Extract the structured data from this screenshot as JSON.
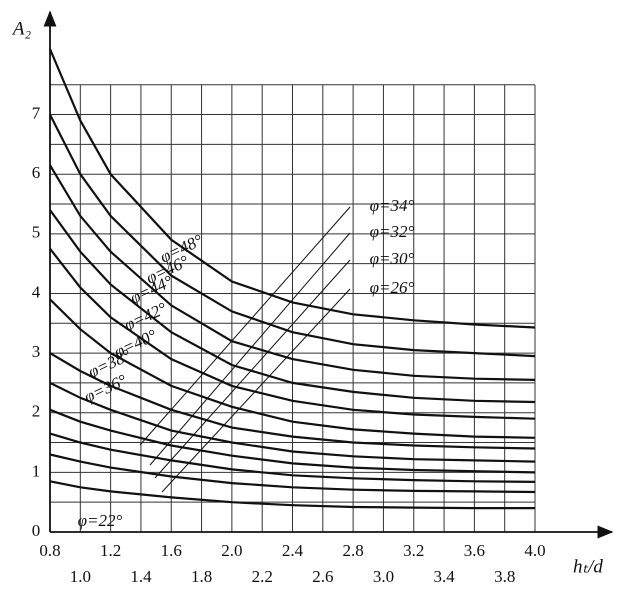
{
  "chart_data": {
    "type": "line",
    "y_label": "A₂",
    "x_label": "hₜ/d",
    "xlim": [
      0.8,
      4.0
    ],
    "ylim": [
      0,
      8.2
    ],
    "xticks": [
      0.8,
      {
        "value": 1.0,
        "label": "1.0"
      },
      1.2,
      1.4,
      1.6,
      1.8,
      {
        "value": 2.0,
        "label": "2.0"
      },
      2.2,
      2.4,
      2.6,
      2.8,
      {
        "value": 3.0,
        "label": "3.0"
      },
      3.2,
      3.4,
      3.6,
      3.8,
      {
        "value": 4.0,
        "label": "4.0"
      }
    ],
    "yticks": [
      0,
      1,
      2,
      3,
      4,
      5,
      6,
      7
    ],
    "minor_yticks": [
      0.5,
      1.5,
      2.5,
      3.5,
      4.5,
      5.5,
      6.5,
      7.5
    ],
    "grid": true,
    "x": [
      0.8,
      1.0,
      1.2,
      1.6,
      2.0,
      2.4,
      2.8,
      3.2,
      3.6,
      4.0
    ],
    "series": [
      {
        "name": "φ=48°",
        "color": "#111111",
        "values": [
          8.1,
          6.9,
          6.0,
          4.9,
          4.2,
          3.85,
          3.65,
          3.55,
          3.48,
          3.43
        ]
      },
      {
        "name": "φ=46°",
        "color": "#111111",
        "values": [
          7.0,
          6.0,
          5.3,
          4.3,
          3.7,
          3.35,
          3.15,
          3.05,
          3.0,
          2.95
        ]
      },
      {
        "name": "φ=44°",
        "color": "#111111",
        "values": [
          6.15,
          5.3,
          4.7,
          3.8,
          3.2,
          2.9,
          2.72,
          2.62,
          2.57,
          2.55
        ]
      },
      {
        "name": "φ=42°",
        "color": "#111111",
        "values": [
          5.4,
          4.7,
          4.15,
          3.35,
          2.8,
          2.5,
          2.35,
          2.25,
          2.2,
          2.18
        ]
      },
      {
        "name": "φ=40°",
        "color": "#111111",
        "values": [
          4.75,
          4.1,
          3.6,
          2.9,
          2.45,
          2.2,
          2.05,
          1.97,
          1.93,
          1.9
        ]
      },
      {
        "name": "φ=38°",
        "color": "#111111",
        "values": [
          3.9,
          3.4,
          3.0,
          2.45,
          2.1,
          1.85,
          1.72,
          1.65,
          1.6,
          1.58
        ]
      },
      {
        "name": "φ=36°",
        "color": "#111111",
        "values": [
          3.0,
          2.7,
          2.45,
          2.05,
          1.75,
          1.6,
          1.5,
          1.45,
          1.42,
          1.4
        ]
      },
      {
        "name": "φ=34°",
        "color": "#111111",
        "values": [
          2.5,
          2.25,
          2.05,
          1.7,
          1.5,
          1.35,
          1.27,
          1.22,
          1.2,
          1.18
        ]
      },
      {
        "name": "φ=32°",
        "color": "#111111",
        "values": [
          2.05,
          1.85,
          1.7,
          1.45,
          1.28,
          1.15,
          1.08,
          1.04,
          1.02,
          1.0
        ]
      },
      {
        "name": "φ=30°",
        "color": "#111111",
        "values": [
          1.65,
          1.5,
          1.38,
          1.2,
          1.05,
          0.95,
          0.9,
          0.87,
          0.85,
          0.84
        ]
      },
      {
        "name": "φ=26°",
        "color": "#111111",
        "values": [
          1.3,
          1.18,
          1.08,
          0.93,
          0.82,
          0.75,
          0.71,
          0.69,
          0.68,
          0.67
        ]
      },
      {
        "name": "φ=22°",
        "color": "#111111",
        "values": [
          0.85,
          0.75,
          0.68,
          0.58,
          0.5,
          0.45,
          0.42,
          0.41,
          0.4,
          0.4
        ]
      }
    ]
  }
}
